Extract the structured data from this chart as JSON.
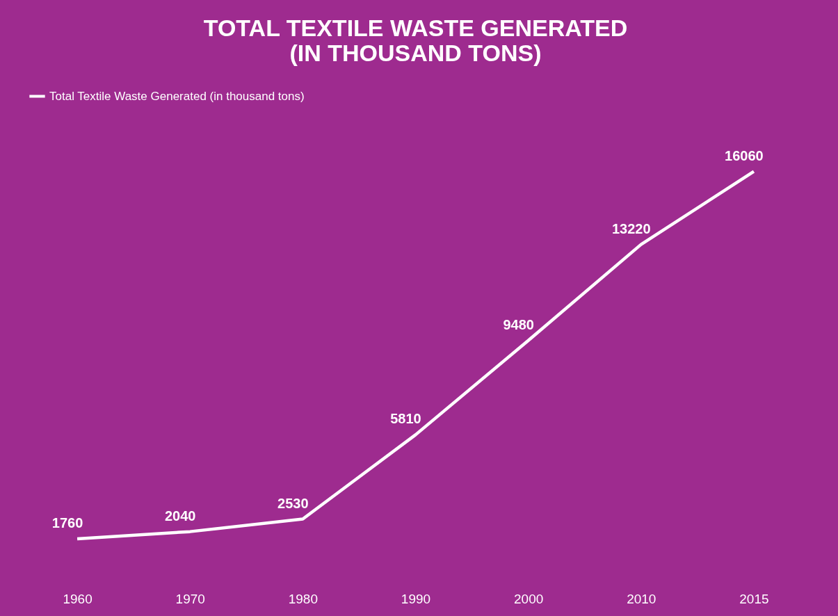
{
  "chart_data": {
    "type": "line",
    "title": "TOTAL TEXTILE WASTE GENERATED (IN THOUSAND TONS)",
    "categories": [
      "1960",
      "1970",
      "1980",
      "1990",
      "2000",
      "2010",
      "2015"
    ],
    "series": [
      {
        "name": "Total Textile Waste Generated (in thousand tons)",
        "color": "#ffffff",
        "values": [
          1760,
          2040,
          2530,
          5810,
          9480,
          13220,
          16060
        ]
      }
    ],
    "data_labels": true,
    "grid": false,
    "legend": "top",
    "line_style": "solid",
    "tick_labels": "x"
  }
}
